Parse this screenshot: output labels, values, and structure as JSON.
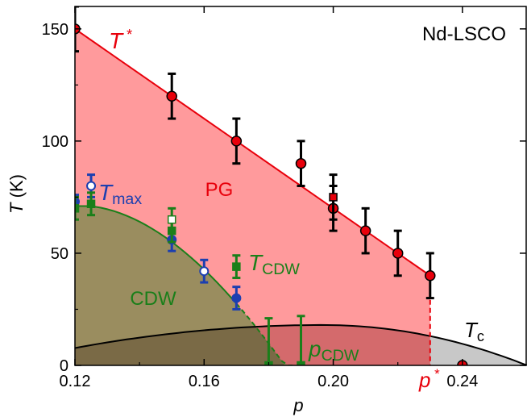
{
  "chart_data": {
    "type": "scatter",
    "title": "Nd-LSCO",
    "xlabel": "p",
    "ylabel": "T (K)",
    "xlim": [
      0.12,
      0.26
    ],
    "ylim": [
      0,
      160
    ],
    "xticks": [
      0.12,
      0.16,
      0.2,
      0.24
    ],
    "xtick_labels": [
      "0.12",
      "0.16",
      "0.20",
      "0.24"
    ],
    "yticks": [
      0,
      50,
      100,
      150
    ],
    "ytick_labels": [
      "0",
      "50",
      "100",
      "150"
    ],
    "colors": {
      "pg_fill": "#ff9a9c",
      "pg_line": "#e8000b",
      "cdw_fill": "#9a8d5f",
      "cdw_line": "#1a7f1a",
      "sc_fill": "#c8c8c8",
      "tmax": "#1c3fb0",
      "overlap_cdw_sc": "#7a6a46",
      "overlap_pg_sc": "#d46a6c"
    },
    "regions": {
      "pg": "PG",
      "cdw": "CDW"
    },
    "lines": {
      "t_star": {
        "label_main": "T",
        "label_sup": "*",
        "x": [
          0.12,
          0.23
        ],
        "y": [
          150,
          40
        ]
      },
      "p_star": {
        "label_main": "p",
        "label_sup": "*",
        "x": 0.23
      },
      "t_cdw": {
        "label_main": "T",
        "label_sub": "CDW"
      },
      "p_cdw": {
        "label_main": "p",
        "label_sub": "CDW"
      },
      "t_max": {
        "label_main": "T",
        "label_sub": "max"
      },
      "tc": {
        "label_main": "T",
        "label_sub": "c",
        "peak_x": 0.197,
        "peak_y": 18
      }
    },
    "series": [
      {
        "name": "T*",
        "marker": "circle",
        "x": [
          0.12,
          0.15,
          0.17,
          0.19,
          0.2,
          0.21,
          0.22,
          0.23,
          0.24
        ],
        "y": [
          150,
          120,
          100,
          90,
          70,
          60,
          50,
          40,
          0
        ],
        "err": [
          10,
          10,
          10,
          10,
          10,
          10,
          10,
          10,
          0
        ]
      },
      {
        "name": "T* (square)",
        "marker": "square",
        "x": [
          0.2
        ],
        "y": [
          75
        ],
        "err": [
          10
        ]
      },
      {
        "name": "Tmax",
        "marker": "circle",
        "x": [
          0.12,
          0.125,
          0.15,
          0.16,
          0.17
        ],
        "y": [
          73,
          80,
          56,
          42,
          30
        ],
        "err": [
          3,
          5,
          5,
          5,
          5
        ],
        "open": [
          false,
          true,
          false,
          true,
          false
        ]
      },
      {
        "name": "TCDW",
        "marker": "square",
        "x": [
          0.12,
          0.125,
          0.15,
          0.15,
          0.17,
          0.18,
          0.19
        ],
        "y": [
          70,
          72,
          60,
          65,
          44,
          0,
          0
        ],
        "err": [
          5,
          5,
          5,
          5,
          5,
          21,
          22
        ],
        "open": [
          false,
          false,
          false,
          true,
          false,
          false,
          false
        ]
      }
    ]
  }
}
